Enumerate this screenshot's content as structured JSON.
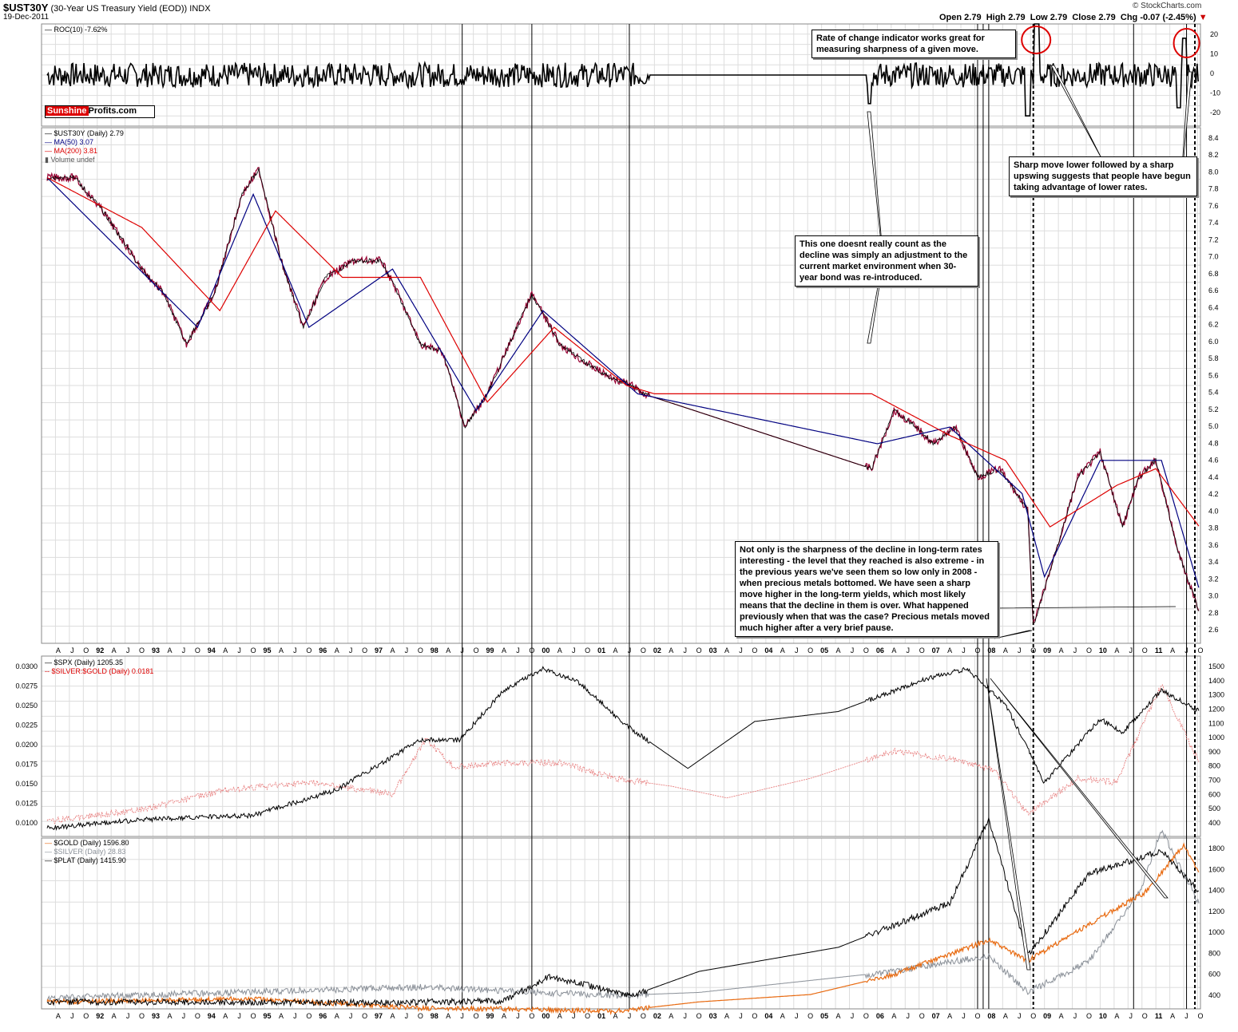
{
  "header": {
    "symbol": "$UST30Y",
    "desc": "(30-Year US Treasury Yield (EOD))",
    "index": "INDX",
    "date": "19-Dec-2011",
    "open": "Open 2.79",
    "high": "High 2.79",
    "low": "Low 2.79",
    "close": "Close 2.79",
    "chg": "Chg -0.07 (-2.45%)",
    "brand": "© StockCharts.com",
    "logo_a": "Sunshine",
    "logo_b": "Profits.com"
  },
  "legends": {
    "roc": "ROC(10) -7.62%",
    "ust": "$UST30Y (Daily) 2.79",
    "ma50": "MA(50) 3.07",
    "ma200": "MA(200) 3.81",
    "vol": "Volume undef",
    "spx": "$SPX (Daily) 1205.35",
    "ratio": "$SILVER:$GOLD (Daily) 0.0181",
    "gold": "$GOLD (Daily) 1596.80",
    "silver": "$SILVER (Daily) 28.83",
    "plat": "$PLAT (Daily) 1415.90"
  },
  "annotations": {
    "roc_note": "Rate of change indicator works great for measuring sharpness of a given move.",
    "adjust_note": "This one doesnt really count as the decline was simply an adjustment to the current market environment when 30-year bond was re-introduced.",
    "sharp_note": "Sharp move lower followed by a sharp upswing suggests that people have begun taking advantage of lower rates.",
    "main_note": "Not only is the sharpness of the decline in long-term rates interesting - the level that they reached is also extreme - in the previous years we've seen them so low only in 2008 - when precious metals bottomed. We have seen a sharp move higher in the long-term yields, which most likely means that the decline in them is over. What happened previously when that was the case? Precious metals moved much higher after a very brief pause."
  },
  "axis": {
    "x_labels": [
      "A",
      "J",
      "O",
      "92",
      "A",
      "J",
      "O",
      "93",
      "A",
      "J",
      "O",
      "94",
      "A",
      "J",
      "O",
      "95",
      "A",
      "J",
      "O",
      "96",
      "A",
      "J",
      "O",
      "97",
      "A",
      "J",
      "O",
      "98",
      "A",
      "J",
      "O",
      "99",
      "A",
      "J",
      "O",
      "00",
      "A",
      "J",
      "O",
      "01",
      "A",
      "J",
      "O",
      "02",
      "A",
      "J",
      "O",
      "03",
      "A",
      "J",
      "O",
      "04",
      "A",
      "J",
      "O",
      "05",
      "A",
      "J",
      "O",
      "06",
      "A",
      "J",
      "O",
      "07",
      "A",
      "J",
      "O",
      "08",
      "A",
      "J",
      "O",
      "09",
      "A",
      "J",
      "O",
      "10",
      "A",
      "J",
      "O",
      "11",
      "A",
      "J",
      "O"
    ],
    "roc_ticks": [
      "20",
      "10",
      "0",
      "-10",
      "-20"
    ],
    "ust_ticks": [
      "8.4",
      "8.2",
      "8.0",
      "7.8",
      "7.6",
      "7.4",
      "7.2",
      "7.0",
      "6.8",
      "6.6",
      "6.4",
      "6.2",
      "6.0",
      "5.8",
      "5.6",
      "5.4",
      "5.2",
      "5.0",
      "4.8",
      "4.6",
      "4.4",
      "4.2",
      "4.0",
      "3.8",
      "3.6",
      "3.4",
      "3.2",
      "3.0",
      "2.8",
      "2.6"
    ],
    "spx_ticks": [
      "1500",
      "1400",
      "1300",
      "1200",
      "1100",
      "1000",
      "900",
      "800",
      "700",
      "600",
      "500",
      "400"
    ],
    "ratio_ticks": [
      "0.0300",
      "0.0275",
      "0.0250",
      "0.0225",
      "0.0200",
      "0.0175",
      "0.0150",
      "0.0125",
      "0.0100"
    ],
    "metal_ticks": [
      "1800",
      "1600",
      "1400",
      "1200",
      "1000",
      "800",
      "600",
      "400"
    ]
  },
  "colors": {
    "ust": "#000000",
    "ma50": "#000080",
    "ma200": "#dd0000",
    "down_bars": "#990033",
    "spx": "#000000",
    "ratio": "#e88080",
    "gold": "#e86a10",
    "silver": "#8a9098",
    "plat": "#000000",
    "circle": "#dd0000"
  },
  "chart_data": [
    {
      "type": "line",
      "title": "ROC(10)",
      "ylim": [
        -25,
        25
      ],
      "last_value": -7.62
    },
    {
      "type": "line",
      "title": "$UST30Y (30-Year US Treasury Yield (EOD))",
      "ylim": [
        2.5,
        8.5
      ],
      "series": [
        {
          "name": "$UST30Y (Daily)",
          "x": [
            1991.3,
            1991.8,
            1992.3,
            1992.6,
            1993.0,
            1993.4,
            1993.8,
            1994.3,
            1994.8,
            1995.1,
            1995.5,
            1995.9,
            1996.3,
            1996.8,
            1997.3,
            1997.6,
            1998.0,
            1998.4,
            1998.8,
            1999.2,
            1999.6,
            2000.0,
            2000.5,
            2000.9,
            2001.4,
            2001.8,
            2002.0,
            2006.1,
            2006.5,
            2006.9,
            2007.2,
            2007.6,
            2008.0,
            2008.4,
            2008.9,
            2009.0,
            2009.4,
            2009.8,
            2010.2,
            2010.6,
            2010.9,
            2011.2,
            2011.6,
            2011.97
          ],
          "values": [
            8.0,
            8.0,
            7.6,
            7.3,
            6.9,
            6.6,
            6.0,
            6.6,
            7.8,
            8.1,
            7.0,
            6.2,
            6.8,
            7.0,
            7.0,
            6.6,
            6.0,
            5.9,
            5.0,
            5.4,
            6.0,
            6.6,
            6.0,
            5.8,
            5.6,
            5.5,
            5.4,
            4.5,
            5.2,
            5.0,
            4.8,
            5.0,
            4.4,
            4.5,
            4.0,
            2.6,
            3.5,
            4.4,
            4.7,
            3.8,
            4.4,
            4.6,
            3.5,
            2.79
          ]
        },
        {
          "name": "MA(50)",
          "x": [
            1991.3,
            1994.0,
            1995.0,
            1996.0,
            1997.5,
            1999.0,
            2000.2,
            2001.9,
            2006.2,
            2007.5,
            2008.8,
            2009.2,
            2010.2,
            2011.3,
            2011.97
          ],
          "values": [
            8.0,
            6.2,
            7.8,
            6.2,
            6.9,
            5.2,
            6.4,
            5.4,
            4.8,
            5.0,
            4.2,
            3.2,
            4.6,
            4.6,
            3.07
          ]
        },
        {
          "name": "MA(200)",
          "x": [
            1991.3,
            1993.0,
            1994.4,
            1995.4,
            1996.6,
            1998.0,
            1999.2,
            2000.4,
            2001.7,
            2002.2,
            2006.1,
            2007.5,
            2008.5,
            2009.3,
            2010.5,
            2011.2,
            2011.97
          ],
          "values": [
            8.0,
            7.4,
            6.4,
            7.6,
            6.8,
            6.8,
            5.3,
            6.2,
            5.5,
            5.4,
            5.4,
            4.9,
            4.6,
            3.8,
            4.3,
            4.5,
            3.81
          ]
        }
      ]
    },
    {
      "type": "line",
      "title": "$SPX vs $SILVER:$GOLD",
      "series": [
        {
          "name": "$SPX (Daily)",
          "x": [
            1991.3,
            1993.0,
            1995.0,
            1996.5,
            1998.0,
            1998.7,
            1999.5,
            2000.2,
            2000.8,
            2001.7,
            2002.8,
            2004.0,
            2005.5,
            2007.0,
            2007.8,
            2008.5,
            2009.2,
            2010.2,
            2010.6,
            2011.3,
            2011.97
          ],
          "values": [
            380,
            440,
            470,
            650,
            1000,
            1000,
            1350,
            1500,
            1420,
            1100,
            800,
            1130,
            1200,
            1420,
            1500,
            1250,
            700,
            1150,
            1050,
            1350,
            1205.35
          ]
        },
        {
          "name": "$SILVER:$GOLD (Daily)",
          "x": [
            1991.3,
            1993.0,
            1994.5,
            1996.0,
            1997.5,
            1998.1,
            1998.6,
            1999.5,
            2000.5,
            2001.5,
            2002.5,
            2003.5,
            2005.0,
            2006.5,
            2007.5,
            2008.3,
            2008.9,
            2009.8,
            2010.5,
            2011.3,
            2011.97
          ],
          "values": [
            0.0105,
            0.012,
            0.0145,
            0.0155,
            0.014,
            0.021,
            0.0175,
            0.018,
            0.018,
            0.016,
            0.015,
            0.0135,
            0.016,
            0.0195,
            0.0185,
            0.017,
            0.0115,
            0.016,
            0.0155,
            0.028,
            0.0181
          ]
        }
      ]
    },
    {
      "type": "line",
      "title": "$GOLD / $SILVER / $PLAT",
      "series": [
        {
          "name": "$GOLD (Daily)",
          "x": [
            1991.3,
            1995.0,
            1998.0,
            1999.8,
            2001.5,
            2003.0,
            2005.0,
            2006.5,
            2008.2,
            2008.9,
            2010.0,
            2011.0,
            2011.7,
            2011.97
          ],
          "values": [
            360,
            390,
            300,
            290,
            270,
            360,
            430,
            620,
            950,
            750,
            1100,
            1400,
            1850,
            1596.8
          ]
        },
        {
          "name": "$SILVER (Daily)",
          "x": [
            1991.3,
            1998.0,
            2001.5,
            2003.0,
            2006.5,
            2008.2,
            2008.9,
            2010.0,
            2010.9,
            2011.3,
            2011.97
          ],
          "values": [
            400,
            500,
            420,
            450,
            650,
            800,
            450,
            750,
            1400,
            2000,
            28.83
          ]
        },
        {
          "name": "$PLAT (Daily)",
          "x": [
            1991.3,
            1997.5,
            1999.5,
            2000.3,
            2001.8,
            2003.0,
            2005.5,
            2007.5,
            2008.2,
            2008.9,
            2010.0,
            2011.3,
            2011.97
          ],
          "values": [
            360,
            350,
            370,
            600,
            420,
            650,
            880,
            1300,
            2100,
            800,
            1580,
            1800,
            1415.9
          ]
        }
      ]
    }
  ]
}
